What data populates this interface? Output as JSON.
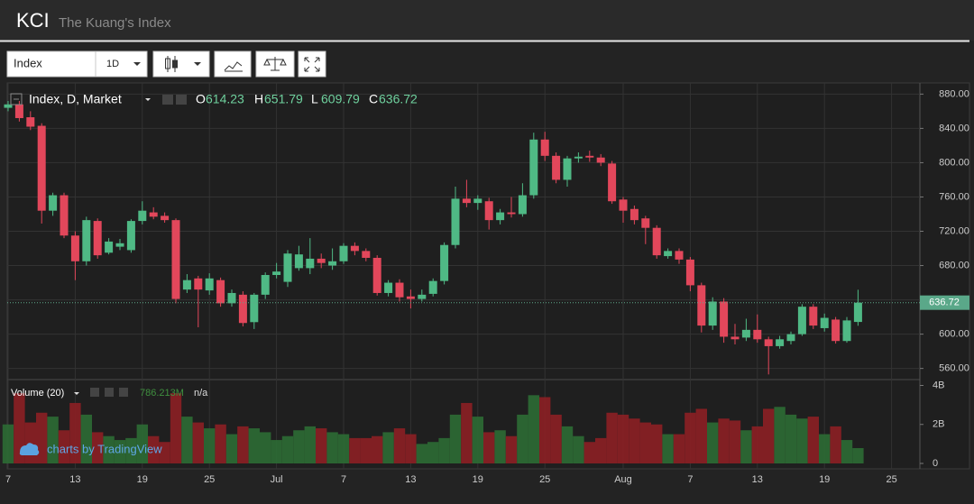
{
  "header": {
    "title": "KCI",
    "subtitle": "The Kuang's Index"
  },
  "toolbar": {
    "symbol": "Index",
    "interval": "1D"
  },
  "chart_data": [
    {
      "type": "candlestick",
      "title": "Index, D, Market",
      "ohlc_labels": [
        "O",
        "H",
        "L",
        "C"
      ],
      "categories": [
        "7",
        null,
        null,
        null,
        null,
        null,
        "13",
        null,
        null,
        null,
        null,
        null,
        "19",
        null,
        null,
        null,
        null,
        null,
        "25",
        null,
        null,
        null,
        null,
        null,
        "Jul",
        null,
        null,
        null,
        null,
        null,
        "7",
        null,
        null,
        null,
        null,
        null,
        "13",
        null,
        null,
        null,
        null,
        null,
        "19",
        null,
        null,
        null,
        null,
        null,
        "25",
        null,
        null,
        null,
        null,
        null,
        null,
        "Aug",
        null,
        null,
        null,
        null,
        null,
        "7",
        null,
        null,
        null,
        null,
        null,
        "13",
        null,
        null,
        null,
        null,
        null,
        "19",
        null,
        null,
        null,
        null,
        null,
        "25",
        null,
        null
      ],
      "open": [
        864,
        868,
        853,
        843,
        744,
        762,
        715,
        685,
        732,
        695,
        702,
        698,
        732,
        742,
        738,
        733,
        652,
        665,
        651,
        663,
        636,
        646,
        614,
        646,
        669,
        661,
        677,
        677,
        688,
        680,
        685,
        703,
        697,
        689,
        648,
        660,
        644,
        641,
        647,
        662,
        704,
        758,
        753,
        755,
        733,
        742,
        740,
        762,
        827,
        808,
        780,
        805,
        808,
        806,
        799,
        757,
        746,
        735,
        724,
        691,
        697,
        687,
        657,
        610,
        638,
        597,
        596,
        605,
        594,
        586,
        592,
        600,
        632,
        607,
        617,
        592,
        614.23,
        null,
        null,
        null,
        null,
        null
      ],
      "high": [
        872,
        872,
        860,
        846,
        765,
        765,
        720,
        737,
        735,
        712,
        711,
        734,
        755,
        748,
        742,
        735,
        670,
        668,
        671,
        666,
        652,
        650,
        648,
        672,
        683,
        698,
        703,
        712,
        694,
        700,
        706,
        707,
        700,
        692,
        663,
        664,
        652,
        652,
        665,
        707,
        772,
        780,
        762,
        759,
        746,
        760,
        776,
        835,
        836,
        812,
        808,
        812,
        814,
        810,
        802,
        760,
        750,
        738,
        727,
        700,
        700,
        690,
        660,
        643,
        642,
        612,
        618,
        623,
        597,
        598,
        603,
        635,
        635,
        624,
        620,
        620,
        651.79,
        null,
        null,
        null,
        null,
        null
      ],
      "low": [
        860,
        848,
        838,
        729,
        738,
        712,
        663,
        680,
        688,
        693,
        698,
        695,
        728,
        734,
        730,
        636,
        648,
        608,
        646,
        632,
        632,
        609,
        606,
        641,
        665,
        655,
        674,
        670,
        677,
        675,
        682,
        692,
        685,
        645,
        644,
        638,
        630,
        638,
        644,
        658,
        700,
        748,
        745,
        722,
        728,
        736,
        737,
        758,
        802,
        776,
        772,
        800,
        801,
        796,
        752,
        730,
        728,
        705,
        688,
        688,
        682,
        650,
        602,
        605,
        590,
        588,
        592,
        590,
        553,
        583,
        588,
        598,
        606,
        603,
        589,
        590,
        609.79,
        null,
        null,
        null,
        null,
        null
      ],
      "close": [
        868,
        852,
        842,
        744,
        762,
        715,
        685,
        733,
        692,
        708,
        706,
        732,
        744,
        737,
        733,
        641,
        663,
        652,
        665,
        636,
        648,
        613,
        646,
        669,
        673,
        694,
        693,
        688,
        683,
        685,
        703,
        697,
        689,
        648,
        660,
        643,
        641,
        646,
        662,
        704,
        758,
        753,
        758,
        733,
        742,
        740,
        762,
        827,
        808,
        780,
        805,
        807,
        806,
        800,
        755,
        744,
        733,
        724,
        692,
        697,
        687,
        657,
        610,
        638,
        597,
        594,
        605,
        594,
        586,
        594,
        600,
        632,
        610,
        619,
        592,
        616,
        636.72,
        null,
        null,
        null,
        null,
        null
      ],
      "up_color": "#4fb985",
      "down_color": "#e2475b",
      "ylim": [
        547,
        893
      ],
      "yticks": [
        {
          "value": 560,
          "label": "560.00"
        },
        {
          "value": 600,
          "label": "600.00"
        },
        {
          "value": 640,
          "label": "640.00"
        },
        {
          "value": 680,
          "label": "680.00"
        },
        {
          "value": 720,
          "label": "720.00"
        },
        {
          "value": 760,
          "label": "760.00"
        },
        {
          "value": 800,
          "label": "800.00"
        },
        {
          "value": 840,
          "label": "840.00"
        },
        {
          "value": 880,
          "label": "880.00"
        }
      ],
      "grid": true
    },
    {
      "type": "bar",
      "title": "Volume (20)",
      "ma_label": "n/a",
      "values": [
        2.0,
        3.6,
        2.1,
        2.6,
        2.4,
        1.7,
        3.1,
        2.5,
        1.6,
        1.4,
        1.2,
        1.3,
        2.0,
        1.4,
        1.1,
        3.6,
        2.4,
        2.1,
        1.8,
        2.0,
        1.5,
        1.9,
        1.8,
        1.6,
        1.2,
        1.4,
        1.7,
        1.9,
        1.8,
        1.6,
        1.5,
        1.3,
        1.3,
        1.4,
        1.6,
        1.8,
        1.5,
        1.0,
        1.1,
        1.3,
        2.5,
        3.1,
        2.4,
        1.6,
        1.7,
        1.4,
        2.5,
        3.5,
        3.4,
        2.5,
        1.9,
        1.4,
        1.1,
        1.3,
        2.6,
        2.5,
        2.3,
        2.1,
        2.0,
        1.5,
        1.5,
        2.6,
        2.8,
        2.1,
        2.3,
        2.2,
        1.7,
        1.9,
        2.8,
        2.9,
        2.5,
        2.3,
        2.4,
        1.5,
        1.9,
        1.2,
        0.786213,
        null,
        null,
        null,
        null,
        null
      ],
      "value_labels": [
        null,
        null,
        null,
        null,
        null,
        null,
        null,
        null,
        null,
        null,
        null,
        null,
        null,
        null,
        null,
        null,
        null,
        null,
        null,
        null,
        null,
        null,
        null,
        null,
        null,
        null,
        null,
        null,
        null,
        null,
        null,
        null,
        null,
        null,
        null,
        null,
        null,
        null,
        null,
        null,
        null,
        null,
        null,
        null,
        null,
        null,
        null,
        null,
        null,
        null,
        null,
        null,
        null,
        null,
        null,
        null,
        null,
        null,
        null,
        null,
        null,
        null,
        null,
        null,
        null,
        null,
        null,
        null,
        null,
        null,
        null,
        null,
        null,
        null,
        null,
        null,
        "786.213M",
        null,
        null,
        null,
        null,
        null
      ],
      "up_color": "#2c6b34",
      "down_color": "#8c1f24",
      "ylim": [
        0,
        4.3
      ],
      "yticks": [
        0,
        {
          "value": 2,
          "label": "2B"
        },
        {
          "value": 4,
          "label": "4B"
        }
      ]
    }
  ],
  "footer": {
    "credit": "charts by TradingView"
  }
}
